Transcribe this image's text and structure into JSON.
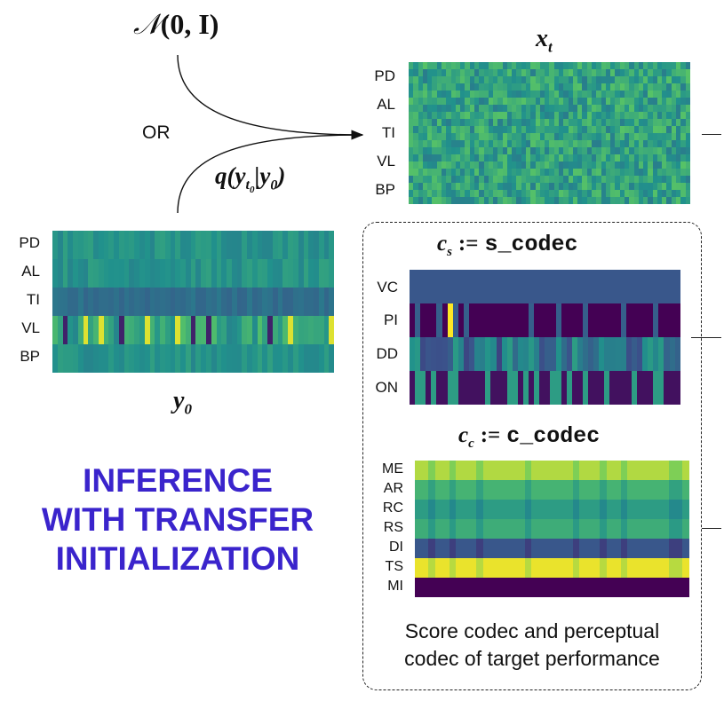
{
  "top_label": {
    "noise_symbol": "𝒩",
    "noise_args": "(0, I)",
    "or_text": "OR",
    "q_expr_prefix": "q(y",
    "q_expr_sub": "t",
    "q_expr_subsub": "0",
    "q_expr_suffix": "|y",
    "q_expr_suffix_sub": "0",
    "q_expr_close": ")"
  },
  "xt": {
    "title_base": "x",
    "title_sub": "t",
    "rows": [
      "PD",
      "AL",
      "TI",
      "VL",
      "BP"
    ]
  },
  "y0": {
    "title_base": "y",
    "title_sub": "0",
    "rows": [
      "PD",
      "AL",
      "TI",
      "VL",
      "BP"
    ]
  },
  "cs": {
    "title_base": "c",
    "title_sub": "s",
    "assign": ":=",
    "code": "s_codec",
    "rows": [
      "VC",
      "PI",
      "DD",
      "ON"
    ]
  },
  "cc": {
    "title_base": "c",
    "title_sub": "c",
    "assign": ":=",
    "code": "c_codec",
    "rows": [
      "ME",
      "AR",
      "RC",
      "RS",
      "DI",
      "TS",
      "MI"
    ]
  },
  "main_title": {
    "line1": "INFERENCE",
    "line2": "WITH TRANSFER",
    "line3": "INITIALIZATION"
  },
  "caption": {
    "line1": "Score codec and perceptual",
    "line2": "codec of target performance"
  },
  "colors": {
    "title_blue": "#3a24cc",
    "viridis": [
      "#440154",
      "#3b528b",
      "#21918c",
      "#5ec962",
      "#fde725"
    ]
  }
}
